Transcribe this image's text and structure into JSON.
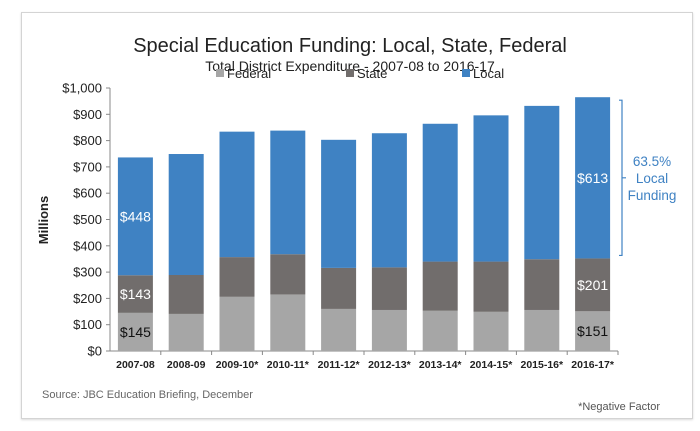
{
  "chart_data": {
    "type": "bar",
    "stacked": true,
    "title": "Special Education Funding: Local, State, Federal",
    "subtitle": "Total District Expenditure - 2007-08 to 2016-17",
    "ylabel": "Millions",
    "xlabel": "",
    "ylim": [
      0,
      1000
    ],
    "yticks": [
      "$0",
      "$100",
      "$200",
      "$300",
      "$400",
      "$500",
      "$600",
      "$700",
      "$800",
      "$900",
      "$1,000"
    ],
    "grid": false,
    "legend_position": "top",
    "categories": [
      "2007-08",
      "2008-09",
      "2009-10*",
      "2010-11*",
      "2011-12*",
      "2012-13*",
      "2013-14*",
      "2014-15*",
      "2015-16*",
      "2016-17*"
    ],
    "series": [
      {
        "name": "Federal",
        "color": "#a6a6a6",
        "values": [
          145,
          141,
          206,
          215,
          160,
          156,
          153,
          149,
          156,
          151
        ]
      },
      {
        "name": "State",
        "color": "#716d6c",
        "values": [
          143,
          148,
          151,
          153,
          156,
          162,
          187,
          191,
          193,
          201
        ]
      },
      {
        "name": "Local",
        "color": "#3f82c3",
        "values": [
          448,
          460,
          477,
          470,
          487,
          510,
          524,
          556,
          583,
          613
        ]
      }
    ],
    "data_labels": [
      {
        "category": "2007-08",
        "series": "Federal",
        "text": "$145"
      },
      {
        "category": "2007-08",
        "series": "State",
        "text": "$143"
      },
      {
        "category": "2007-08",
        "series": "Local",
        "text": "$448"
      },
      {
        "category": "2016-17*",
        "series": "Federal",
        "text": "$151"
      },
      {
        "category": "2016-17*",
        "series": "State",
        "text": "$201"
      },
      {
        "category": "2016-17*",
        "series": "Local",
        "text": "$613"
      }
    ],
    "annotation": {
      "lines": [
        "63.5%",
        "Local",
        "Funding"
      ],
      "color": "#3f82c3"
    }
  },
  "source": "Source: JBC Education Briefing, December",
  "footnote": "*Negative Factor"
}
